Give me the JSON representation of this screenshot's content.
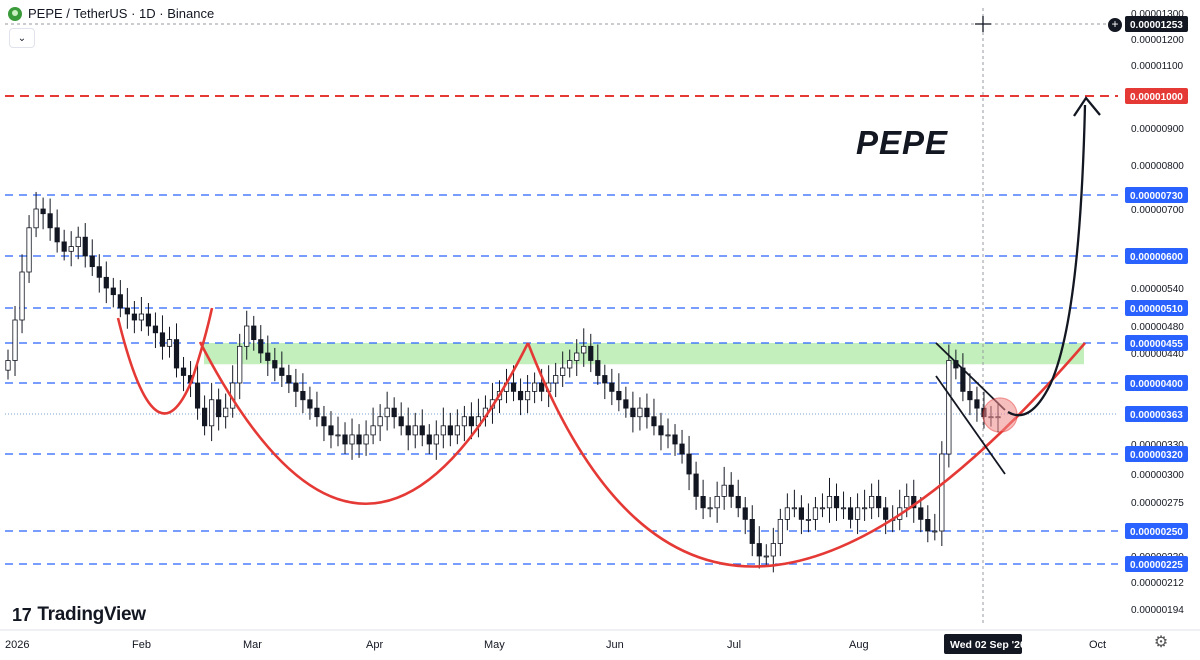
{
  "header": {
    "symbol_title": "PEPE / TetherUS · 1D · Binance",
    "dropdown_glyph": "⌄"
  },
  "watermark": {
    "brand": "TradingView",
    "mark": "17"
  },
  "annotation_text": "PEPE",
  "settings_icon": "gear-icon",
  "colors": {
    "up": "#131722",
    "down": "#131722",
    "support_lines": "#2962ff",
    "target_line": "#e53935",
    "cup_curve": "#e53935",
    "resistance_zone": "#b7ecb0",
    "arrow": "#131722",
    "crosshair_label_bg": "#131722",
    "target_label_bg": "#e53935",
    "support_label_bg": "#2962ff"
  },
  "chart_data": {
    "type": "candlestick",
    "title": "PEPE / TetherUS · 1D · Binance",
    "x_axis_ticks": [
      "2026",
      "Feb",
      "Mar",
      "Apr",
      "May",
      "Jun",
      "Jul",
      "Aug",
      "Oct"
    ],
    "crosshair_date_label": "Wed 02 Sep '26",
    "y_axis_ticks": [
      "0.00001300",
      "0.00001200",
      "0.00001100",
      "0.00000900",
      "0.00000800",
      "0.00000700",
      "0.00000540",
      "0.00000480",
      "0.00000440",
      "0.00000330",
      "0.00000300",
      "0.00000275",
      "0.00000230",
      "0.00000212",
      "0.00000194"
    ],
    "price_labels": [
      {
        "value": "0.00001253",
        "kind": "crosshair"
      },
      {
        "value": "0.00001000",
        "kind": "target"
      },
      {
        "value": "0.00000730",
        "kind": "level"
      },
      {
        "value": "0.00000600",
        "kind": "level"
      },
      {
        "value": "0.00000510",
        "kind": "level"
      },
      {
        "value": "0.00000455",
        "kind": "level"
      },
      {
        "value": "0.00000400",
        "kind": "level"
      },
      {
        "value": "0.00000363",
        "kind": "level"
      },
      {
        "value": "0.00000320",
        "kind": "level"
      },
      {
        "value": "0.00000250",
        "kind": "level"
      },
      {
        "value": "0.00000225",
        "kind": "level"
      }
    ],
    "horizontal_levels": [
      1e-05,
      7.3e-06,
      6e-06,
      5.1e-06,
      4.55e-06,
      4e-06,
      3.2e-06,
      2.5e-06,
      2.25e-06
    ],
    "resistance_zone": [
      4.25e-06,
      4.55e-06
    ],
    "candles_close": [
      4.3e-06,
      4.9e-06,
      5.7e-06,
      6.6e-06,
      7e-06,
      6.9e-06,
      6.6e-06,
      6.3e-06,
      6.1e-06,
      6.2e-06,
      6.4e-06,
      6e-06,
      5.8e-06,
      5.6e-06,
      5.4e-06,
      5.3e-06,
      5.1e-06,
      5e-06,
      4.9e-06,
      5e-06,
      4.8e-06,
      4.7e-06,
      4.5e-06,
      4.6e-06,
      4.2e-06,
      4.1e-06,
      4e-06,
      3.7e-06,
      3.5e-06,
      3.8e-06,
      3.6e-06,
      3.7e-06,
      4e-06,
      4.5e-06,
      4.8e-06,
      4.6e-06,
      4.4e-06,
      4.3e-06,
      4.2e-06,
      4.1e-06,
      4e-06,
      3.9e-06,
      3.8e-06,
      3.7e-06,
      3.6e-06,
      3.5e-06,
      3.4e-06,
      3.4e-06,
      3.3e-06,
      3.4e-06,
      3.3e-06,
      3.4e-06,
      3.5e-06,
      3.6e-06,
      3.7e-06,
      3.6e-06,
      3.5e-06,
      3.4e-06,
      3.5e-06,
      3.4e-06,
      3.3e-06,
      3.4e-06,
      3.5e-06,
      3.4e-06,
      3.5e-06,
      3.6e-06,
      3.5e-06,
      3.6e-06,
      3.7e-06,
      3.8e-06,
      3.9e-06,
      4e-06,
      3.9e-06,
      3.8e-06,
      3.9e-06,
      4e-06,
      3.9e-06,
      4e-06,
      4.1e-06,
      4.2e-06,
      4.3e-06,
      4.4e-06,
      4.5e-06,
      4.3e-06,
      4.1e-06,
      4e-06,
      3.9e-06,
      3.8e-06,
      3.7e-06,
      3.6e-06,
      3.7e-06,
      3.6e-06,
      3.5e-06,
      3.4e-06,
      3.4e-06,
      3.3e-06,
      3.2e-06,
      3e-06,
      2.8e-06,
      2.7e-06,
      2.7e-06,
      2.8e-06,
      2.9e-06,
      2.8e-06,
      2.7e-06,
      2.6e-06,
      2.4e-06,
      2.3e-06,
      2.3e-06,
      2.4e-06,
      2.6e-06,
      2.7e-06,
      2.7e-06,
      2.6e-06,
      2.6e-06,
      2.7e-06,
      2.7e-06,
      2.8e-06,
      2.7e-06,
      2.7e-06,
      2.6e-06,
      2.7e-06,
      2.7e-06,
      2.8e-06,
      2.7e-06,
      2.6e-06,
      2.6e-06,
      2.7e-06,
      2.8e-06,
      2.7e-06,
      2.6e-06,
      2.5e-06,
      2.5e-06,
      3.2e-06,
      4.3e-06,
      4.2e-06,
      3.9e-06,
      3.8e-06,
      3.7e-06,
      3.6e-06,
      3.6e-06,
      3.6e-06
    ],
    "ylim": [
      1.9e-06,
      1.32e-05
    ]
  }
}
